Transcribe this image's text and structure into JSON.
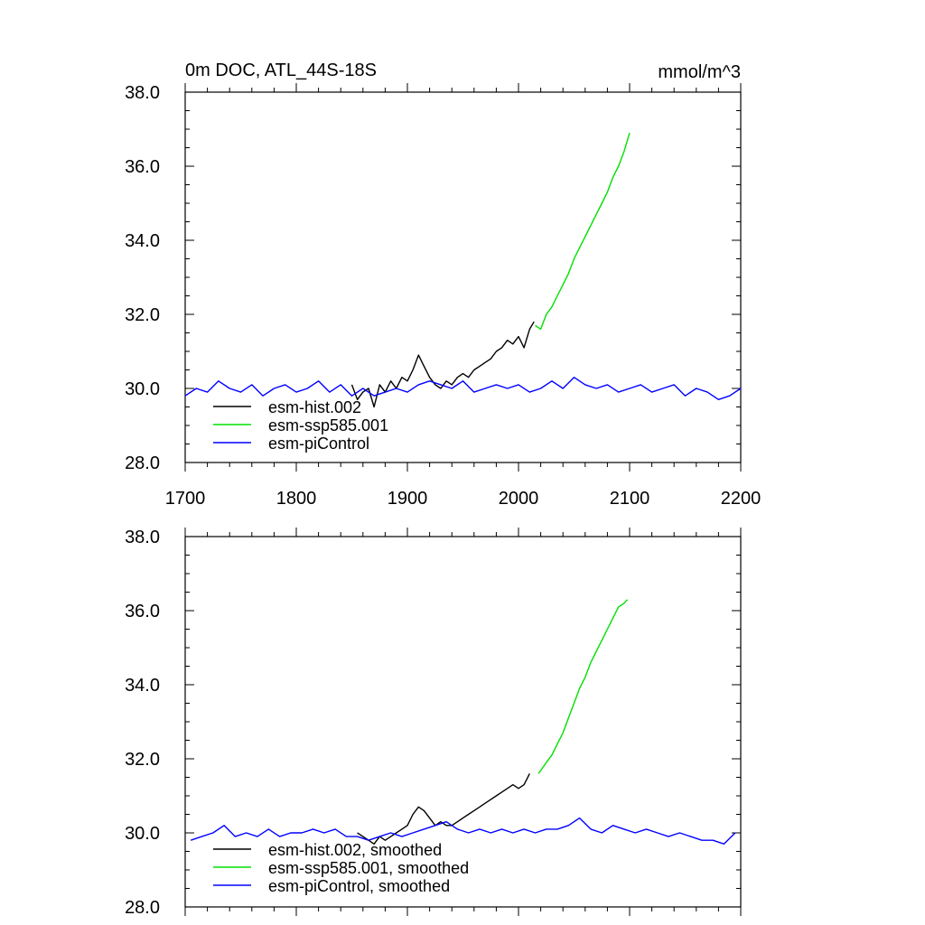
{
  "figure": {
    "title_left": "0m DOC, ATL_44S-18S",
    "title_right": "mmol/m^3"
  },
  "colors": {
    "hist": "#000000",
    "ssp": "#00e000",
    "pictrl": "#0000ff"
  },
  "chart_data": [
    {
      "type": "line",
      "panel": "top",
      "title": "0m DOC, ATL_44S-18S",
      "units": "mmol/m^3",
      "xlim": [
        1700,
        2200
      ],
      "ylim": [
        28.0,
        38.0
      ],
      "x_ticks": [
        1700,
        1800,
        1900,
        2000,
        2100,
        2200
      ],
      "x_tick_labels": [
        "1700",
        "1800",
        "1900",
        "2000",
        "2100",
        "2200"
      ],
      "y_ticks": [
        28.0,
        30.0,
        32.0,
        34.0,
        36.0,
        38.0
      ],
      "y_tick_labels": [
        "28.0",
        "30.0",
        "32.0",
        "34.0",
        "36.0",
        "38.0"
      ],
      "grid": false,
      "legend_position": "lower-left",
      "series": [
        {
          "name": "esm-hist.002",
          "color": "#000000",
          "x": [
            1850,
            1855,
            1860,
            1865,
            1870,
            1875,
            1880,
            1885,
            1890,
            1895,
            1900,
            1905,
            1910,
            1915,
            1920,
            1925,
            1930,
            1935,
            1940,
            1945,
            1950,
            1955,
            1960,
            1965,
            1970,
            1975,
            1980,
            1985,
            1990,
            1995,
            2000,
            2005,
            2010,
            2014
          ],
          "values": [
            30.1,
            29.7,
            29.9,
            30.0,
            29.5,
            30.1,
            29.9,
            30.2,
            30.0,
            30.3,
            30.2,
            30.5,
            30.9,
            30.6,
            30.3,
            30.1,
            30.0,
            30.2,
            30.1,
            30.3,
            30.4,
            30.3,
            30.5,
            30.6,
            30.7,
            30.8,
            31.0,
            31.1,
            31.3,
            31.2,
            31.4,
            31.1,
            31.6,
            31.8
          ]
        },
        {
          "name": "esm-ssp585.001",
          "color": "#00e000",
          "x": [
            2015,
            2020,
            2025,
            2030,
            2035,
            2040,
            2045,
            2050,
            2055,
            2060,
            2065,
            2070,
            2075,
            2080,
            2085,
            2090,
            2095,
            2100
          ],
          "values": [
            31.7,
            31.6,
            32.0,
            32.2,
            32.5,
            32.8,
            33.1,
            33.5,
            33.8,
            34.1,
            34.4,
            34.7,
            35.0,
            35.3,
            35.7,
            36.0,
            36.4,
            36.9
          ]
        },
        {
          "name": "esm-piControl",
          "color": "#0000ff",
          "x": [
            1700,
            1710,
            1720,
            1730,
            1740,
            1750,
            1760,
            1770,
            1780,
            1790,
            1800,
            1810,
            1820,
            1830,
            1840,
            1850,
            1860,
            1870,
            1880,
            1890,
            1900,
            1910,
            1920,
            1930,
            1940,
            1950,
            1960,
            1970,
            1980,
            1990,
            2000,
            2010,
            2020,
            2030,
            2040,
            2050,
            2060,
            2070,
            2080,
            2090,
            2100,
            2110,
            2120,
            2130,
            2140,
            2150,
            2160,
            2170,
            2180,
            2190,
            2200
          ],
          "values": [
            29.8,
            30.0,
            29.9,
            30.2,
            30.0,
            29.9,
            30.1,
            29.8,
            30.0,
            30.1,
            29.9,
            30.0,
            30.2,
            29.9,
            30.1,
            29.8,
            30.0,
            29.8,
            29.9,
            30.0,
            29.9,
            30.1,
            30.2,
            30.1,
            30.0,
            30.2,
            29.9,
            30.0,
            30.1,
            30.0,
            30.1,
            29.9,
            30.0,
            30.2,
            30.0,
            30.3,
            30.1,
            30.0,
            30.1,
            29.9,
            30.0,
            30.1,
            29.9,
            30.0,
            30.1,
            29.8,
            30.0,
            29.9,
            29.7,
            29.8,
            30.0
          ]
        }
      ]
    },
    {
      "type": "line",
      "panel": "bottom",
      "xlim": [
        1700,
        2200
      ],
      "ylim": [
        28.0,
        38.0
      ],
      "y_ticks": [
        28.0,
        30.0,
        32.0,
        34.0,
        36.0,
        38.0
      ],
      "y_tick_labels": [
        "28.0",
        "30.0",
        "32.0",
        "34.0",
        "36.0",
        "38.0"
      ],
      "grid": false,
      "legend_position": "lower-left",
      "series": [
        {
          "name": "esm-hist.002, smoothed",
          "color": "#000000",
          "x": [
            1855,
            1860,
            1865,
            1870,
            1875,
            1880,
            1885,
            1890,
            1895,
            1900,
            1905,
            1910,
            1915,
            1920,
            1925,
            1930,
            1935,
            1940,
            1945,
            1950,
            1955,
            1960,
            1965,
            1970,
            1975,
            1980,
            1985,
            1990,
            1995,
            2000,
            2005,
            2010
          ],
          "values": [
            30.0,
            29.9,
            29.8,
            29.7,
            29.9,
            29.8,
            29.9,
            30.0,
            30.1,
            30.2,
            30.5,
            30.7,
            30.6,
            30.4,
            30.2,
            30.3,
            30.2,
            30.2,
            30.3,
            30.4,
            30.5,
            30.6,
            30.7,
            30.8,
            30.9,
            31.0,
            31.1,
            31.2,
            31.3,
            31.2,
            31.3,
            31.6
          ]
        },
        {
          "name": "esm-ssp585.001, smoothed",
          "color": "#00e000",
          "x": [
            2018,
            2025,
            2030,
            2035,
            2040,
            2045,
            2050,
            2055,
            2060,
            2065,
            2070,
            2075,
            2080,
            2085,
            2090,
            2095,
            2098
          ],
          "values": [
            31.6,
            31.9,
            32.1,
            32.4,
            32.7,
            33.1,
            33.5,
            33.9,
            34.2,
            34.6,
            34.9,
            35.2,
            35.5,
            35.8,
            36.1,
            36.2,
            36.3
          ]
        },
        {
          "name": "esm-piControl, smoothed",
          "color": "#0000ff",
          "x": [
            1705,
            1715,
            1725,
            1735,
            1745,
            1755,
            1765,
            1775,
            1785,
            1795,
            1805,
            1815,
            1825,
            1835,
            1845,
            1855,
            1865,
            1875,
            1885,
            1895,
            1905,
            1915,
            1925,
            1935,
            1945,
            1955,
            1965,
            1975,
            1985,
            1995,
            2005,
            2015,
            2025,
            2035,
            2045,
            2055,
            2065,
            2075,
            2085,
            2095,
            2105,
            2115,
            2125,
            2135,
            2145,
            2155,
            2165,
            2175,
            2185,
            2195
          ],
          "values": [
            29.8,
            29.9,
            30.0,
            30.2,
            29.9,
            30.0,
            29.9,
            30.1,
            29.9,
            30.0,
            30.0,
            30.1,
            30.0,
            30.1,
            29.9,
            29.9,
            29.8,
            29.9,
            30.0,
            29.9,
            30.0,
            30.1,
            30.2,
            30.3,
            30.1,
            30.0,
            30.1,
            30.0,
            30.1,
            30.0,
            30.1,
            30.0,
            30.1,
            30.1,
            30.2,
            30.4,
            30.1,
            30.0,
            30.2,
            30.1,
            30.0,
            30.1,
            30.0,
            29.9,
            30.0,
            29.9,
            29.8,
            29.8,
            29.7,
            30.0
          ]
        }
      ]
    }
  ]
}
